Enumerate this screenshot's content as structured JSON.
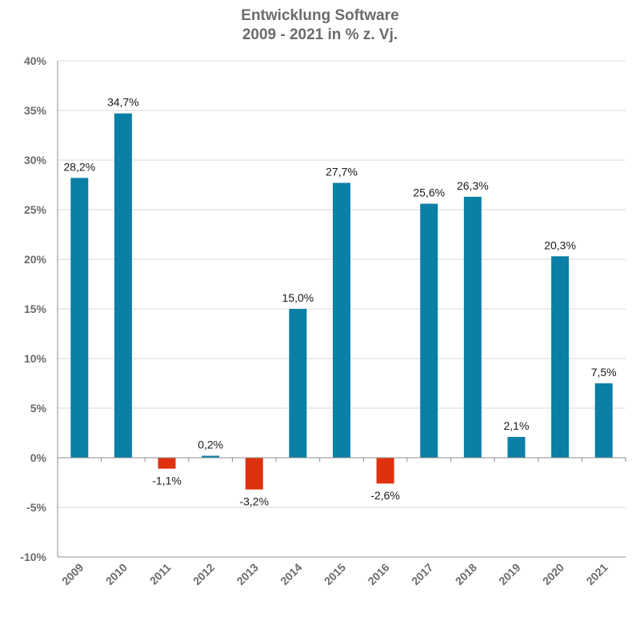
{
  "chart_data": {
    "type": "bar",
    "title": "Entwicklung Software",
    "subtitle": "2009 - 2021 in % z. Vj.",
    "xlabel": "",
    "ylabel": "",
    "categories": [
      "2009",
      "2010",
      "2011",
      "2012",
      "2013",
      "2014",
      "2015",
      "2016",
      "2017",
      "2018",
      "2019",
      "2020",
      "2021"
    ],
    "values": [
      28.2,
      34.7,
      -1.1,
      0.2,
      -3.2,
      15.0,
      27.7,
      -2.6,
      25.6,
      26.3,
      2.1,
      20.3,
      7.5
    ],
    "data_labels": [
      "28,2%",
      "34,7%",
      "-1,1%",
      "0,2%",
      "-3,2%",
      "15,0%",
      "27,7%",
      "-2,6%",
      "25,6%",
      "26,3%",
      "2,1%",
      "20,3%",
      "7,5%"
    ],
    "ylim": [
      -10,
      40
    ],
    "y_ticks": [
      40,
      35,
      30,
      25,
      20,
      15,
      10,
      5,
      0,
      -5,
      -10
    ],
    "y_tick_labels": [
      "40%",
      "35%",
      "30%",
      "25%",
      "20%",
      "15%",
      "10%",
      "5%",
      "0%",
      "-5%",
      "-10%"
    ],
    "grid": true,
    "colors": {
      "positive": "#0b7fa6",
      "negative": "#e0310f",
      "grid": "#d9d9d9",
      "axis": "#8c8c8c",
      "text": "#6b6b6b"
    }
  }
}
